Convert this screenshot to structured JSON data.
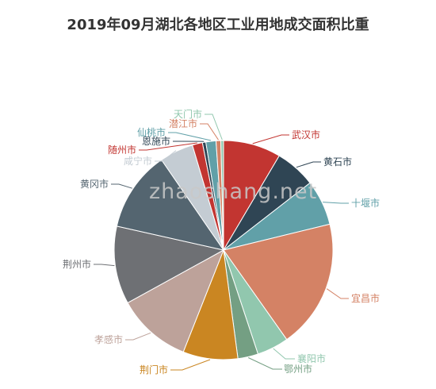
{
  "title": "2019年09月湖北各地区工业用地成交面积比重",
  "watermark": "zhaoshang.net",
  "chart_data": {
    "type": "pie",
    "title": "2019年09月湖北各地区工业用地成交面积比重",
    "categories": [
      "武汉市",
      "黄石市",
      "十堰市",
      "宜昌市",
      "襄阳市",
      "鄂州市",
      "荆门市",
      "孝感市",
      "荆州市",
      "黄冈市",
      "咸宁市",
      "随州市",
      "恩施市",
      "仙桃市",
      "潜江市",
      "天门市"
    ],
    "values": [
      8.5,
      6.0,
      6.7,
      19.0,
      4.7,
      3.0,
      8.1,
      11.0,
      11.5,
      11.9,
      5.0,
      1.5,
      0.5,
      1.5,
      0.7,
      0.4
    ],
    "colors": [
      "#c23531",
      "#2f4554",
      "#61a0a8",
      "#d48265",
      "#91c7ae",
      "#749f83",
      "#ca8622",
      "#bda29a",
      "#6e7074",
      "#546570",
      "#c4ccd3",
      "#c23531",
      "#2f4554",
      "#61a0a8",
      "#d48265",
      "#91c7ae"
    ],
    "legend": "none"
  }
}
